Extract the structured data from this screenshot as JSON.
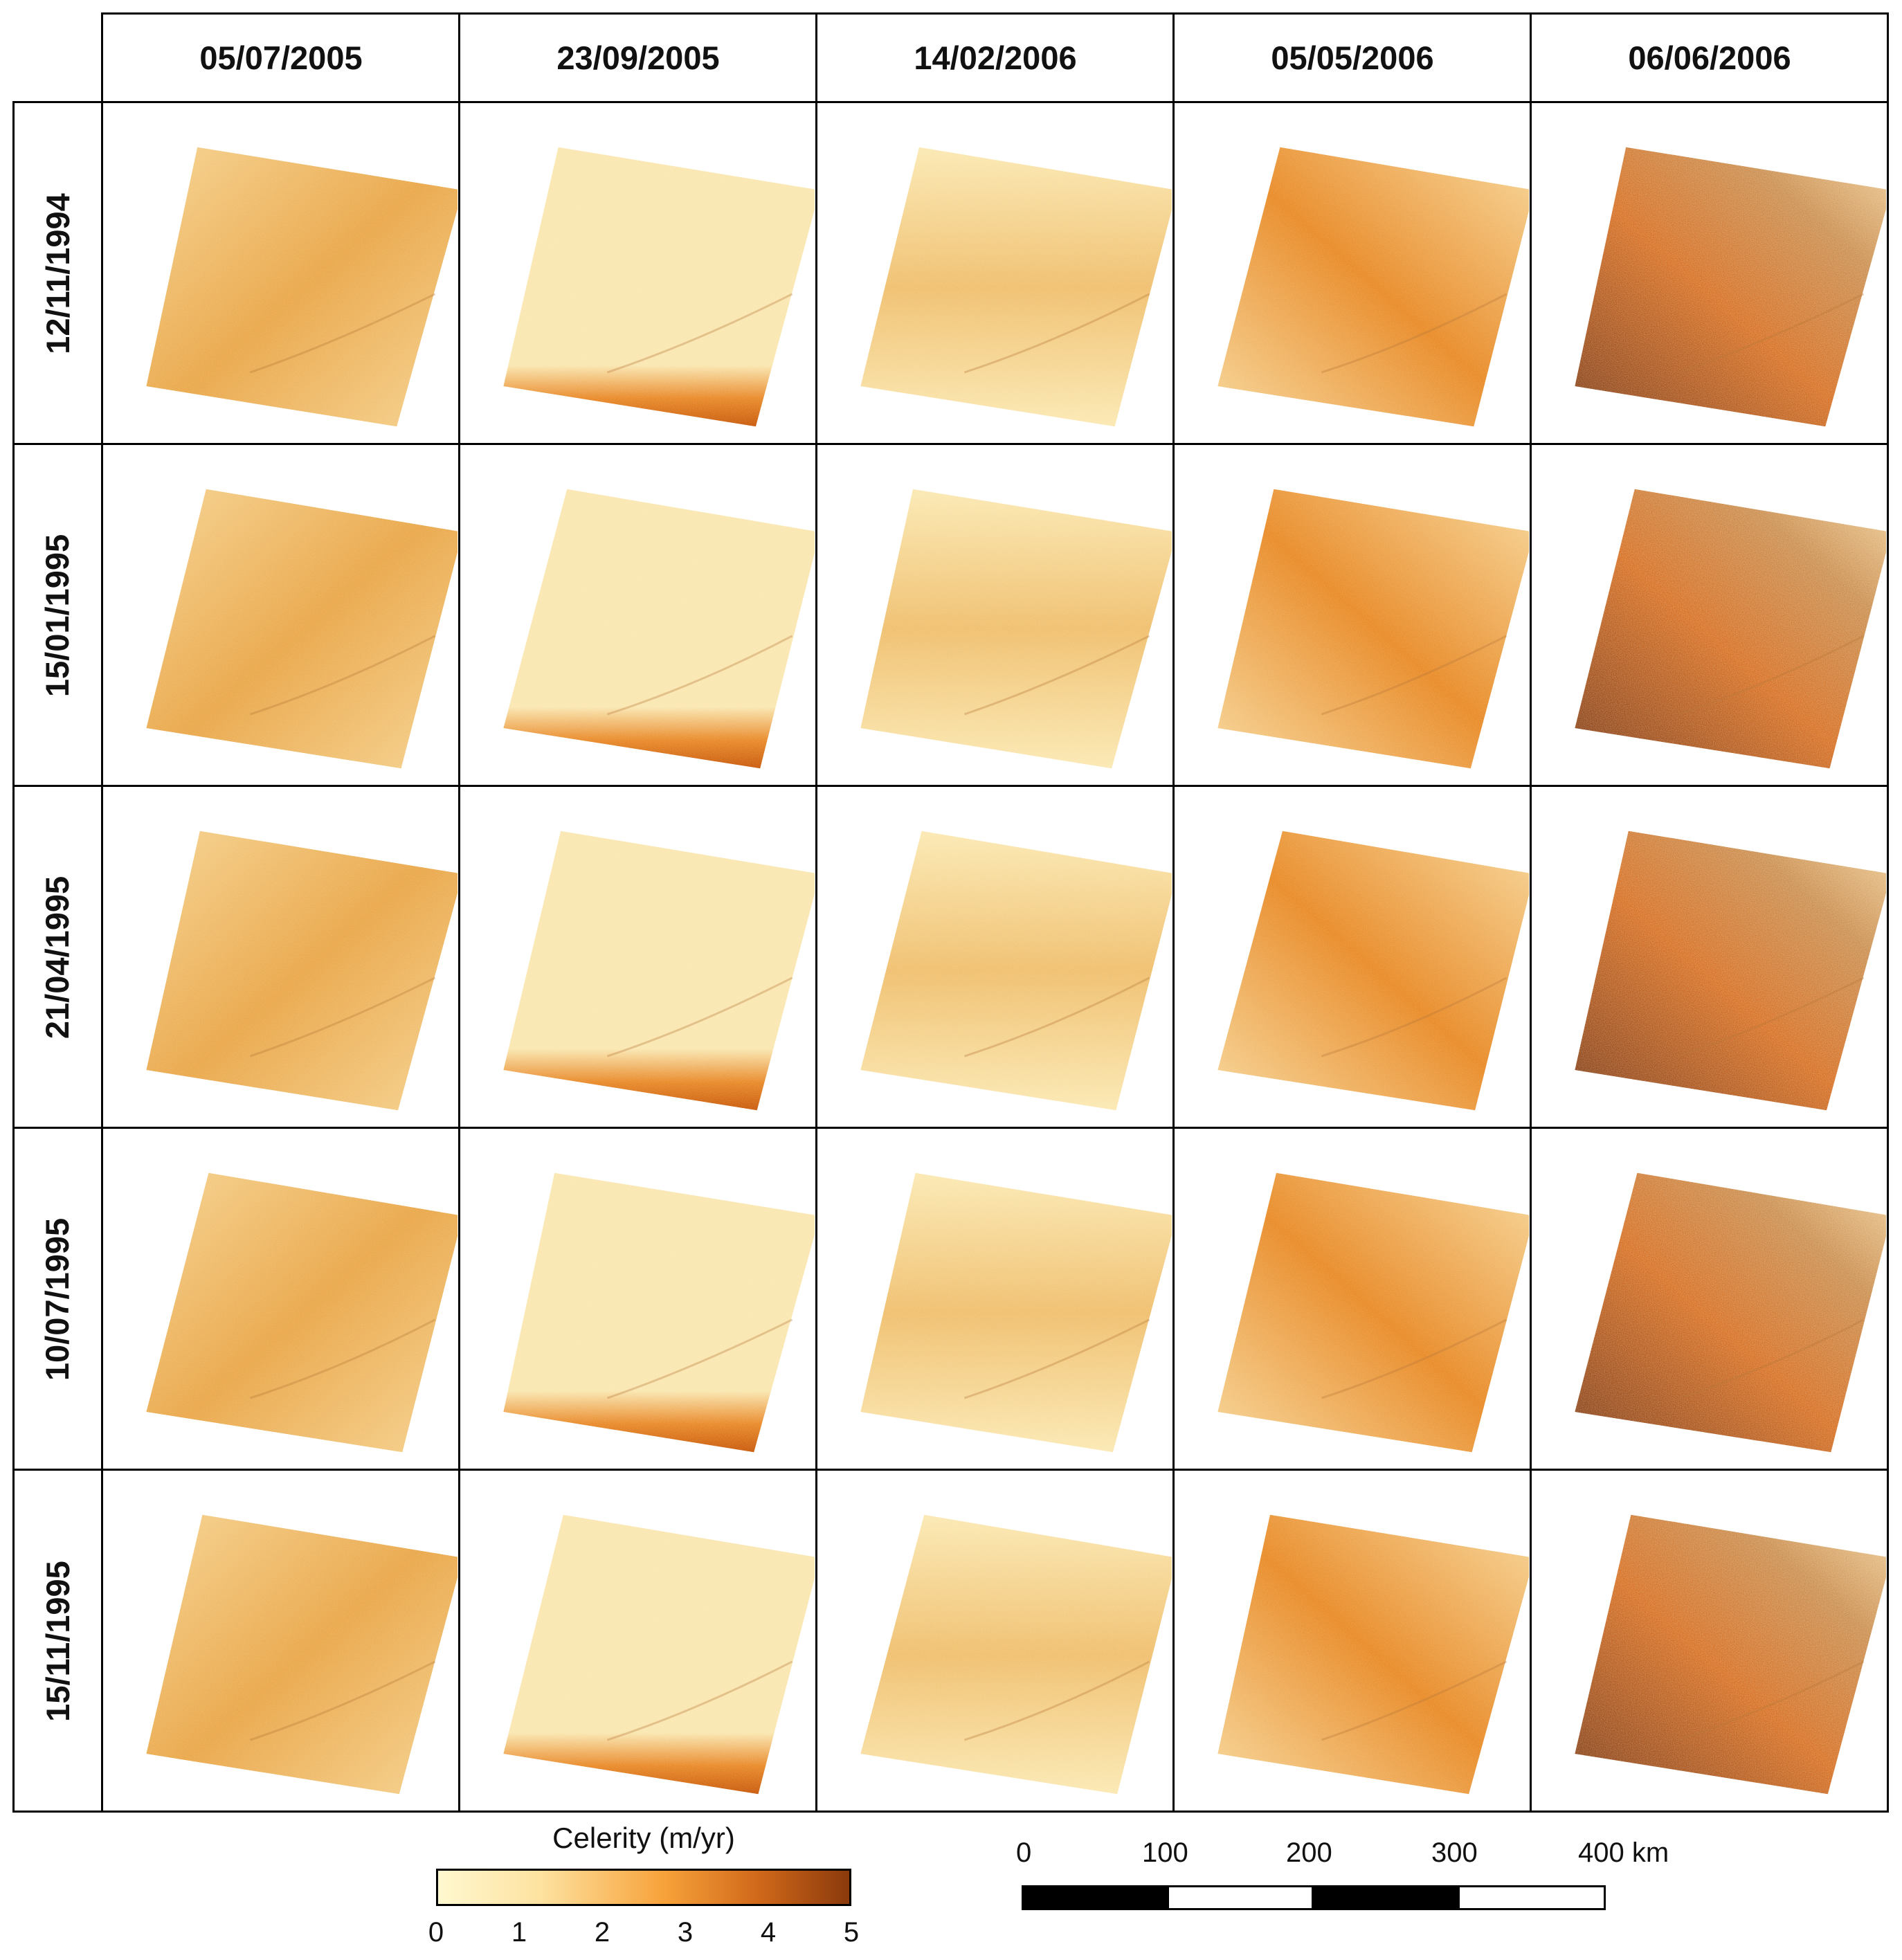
{
  "columns": [
    "05/07/2005",
    "23/09/2005",
    "14/02/2006",
    "05/05/2006",
    "06/06/2006"
  ],
  "rows": [
    "12/11/1994",
    "15/01/1995",
    "21/04/1995",
    "10/07/1995",
    "15/11/1995"
  ],
  "legend": {
    "title": "Celerity (m/yr)",
    "ticks": [
      "0",
      "1",
      "2",
      "3",
      "4",
      "5"
    ],
    "color_low": "#fff8d0",
    "color_mid": "#f7a23a",
    "color_high": "#8b3a0c"
  },
  "scale_bar": {
    "labels": [
      "0",
      "100",
      "200",
      "300",
      "400 km"
    ]
  },
  "panel_styles": {
    "col0": {
      "base": "#f6d391",
      "accent": "#eaa84c"
    },
    "col1": {
      "base": "#fae7b2",
      "accent": "#c95a0c"
    },
    "col2": {
      "base": "#fbe9b4",
      "accent": "#f0c070"
    },
    "col3": {
      "base": "#f7d79a",
      "accent": "#e98c2a"
    },
    "col4": {
      "base": "#c98a4a",
      "accent": "#7a3510"
    }
  }
}
